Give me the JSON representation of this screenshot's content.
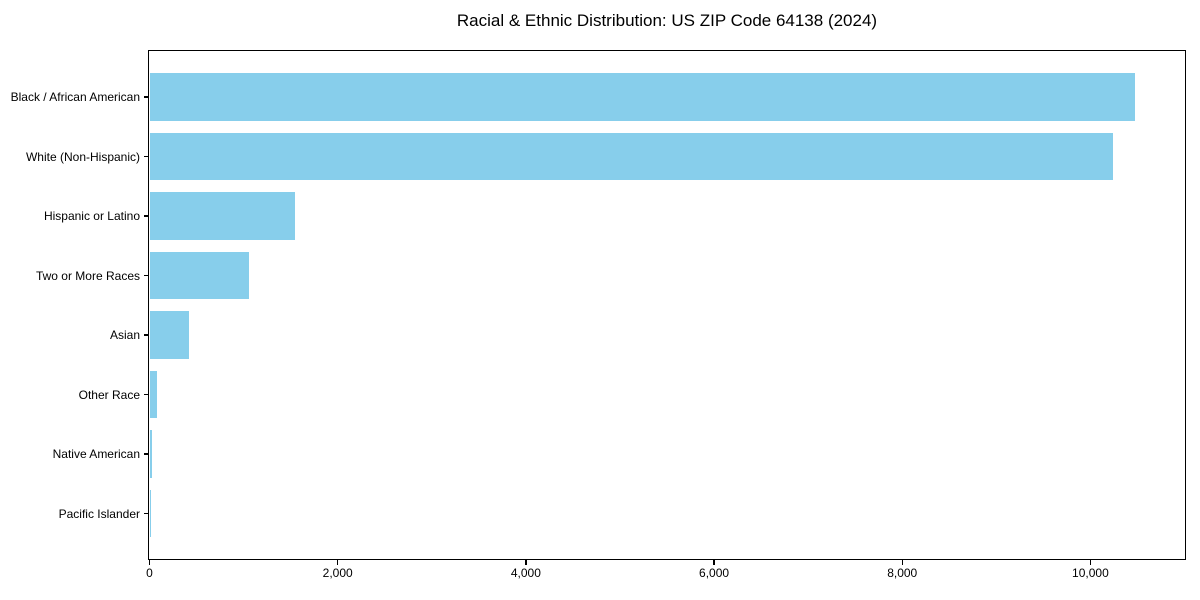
{
  "chart_data": {
    "type": "bar",
    "orientation": "horizontal",
    "title": "Racial & Ethnic Distribution: US ZIP Code 64138 (2024)",
    "categories": [
      "Black / African American",
      "White (Non-Hispanic)",
      "Hispanic or Latino",
      "Two or More Races",
      "Asian",
      "Other Race",
      "Native American",
      "Pacific Islander"
    ],
    "values": [
      10470,
      10240,
      1550,
      1060,
      415,
      85,
      30,
      5
    ],
    "xlabel": "",
    "ylabel": "",
    "xlim": [
      0,
      11000
    ],
    "xticks": [
      0,
      2000,
      4000,
      6000,
      8000,
      10000
    ],
    "xtick_labels": [
      "0",
      "2,000",
      "4,000",
      "6,000",
      "8,000",
      "10,000"
    ],
    "bar_color": "#87CEEB",
    "axis_color": "#000000",
    "background_color": "#ffffff",
    "grid": false,
    "legend": null
  }
}
